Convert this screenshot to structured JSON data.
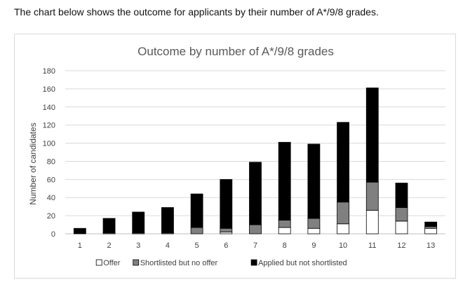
{
  "intro_text": "The chart below shows the outcome for applicants by their number of A*/9/8 grades.",
  "chart_data": {
    "type": "bar",
    "stacked": true,
    "title": "Outcome by number of A*/9/8 grades",
    "xlabel": "",
    "ylabel": "Number of candidates",
    "ylim": [
      0,
      180
    ],
    "yticks": [
      0,
      20,
      40,
      60,
      80,
      100,
      120,
      140,
      160,
      180
    ],
    "grid": true,
    "legend_position": "bottom",
    "categories": [
      "1",
      "2",
      "3",
      "4",
      "5",
      "6",
      "7",
      "8",
      "9",
      "10",
      "11",
      "12",
      "13"
    ],
    "series": [
      {
        "name": "Offer",
        "color": "#ffffff",
        "values": [
          0,
          0,
          0,
          0,
          0,
          2,
          0,
          7,
          6,
          11,
          26,
          14,
          6
        ]
      },
      {
        "name": "Shortlisted but no offer",
        "color": "#808080",
        "values": [
          0,
          1,
          1,
          1,
          7,
          4,
          10,
          8,
          11,
          24,
          31,
          15,
          2
        ]
      },
      {
        "name": "Applied but not shortlisted",
        "color": "#000000",
        "values": [
          6,
          16,
          23,
          28,
          37,
          54,
          69,
          86,
          82,
          88,
          104,
          27,
          5
        ]
      }
    ]
  }
}
